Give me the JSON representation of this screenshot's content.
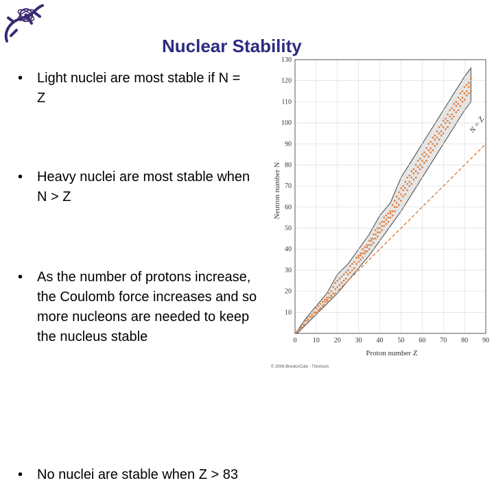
{
  "slide": {
    "title": "Nuclear Stability",
    "bullets": [
      "Light nuclei are most stable if N = Z",
      "Heavy nuclei are most stable when N > Z",
      "As the number of protons increase, the Coulomb force increases and so more nucleons are needed to keep the nucleus stable",
      "No nuclei are stable when Z > 83"
    ],
    "bullet_glyph": "•",
    "logo_icon": "lizard-atom-logo"
  },
  "chart_data": {
    "type": "scatter",
    "xlabel": "Proton number Z",
    "ylabel": "Neutron number N",
    "xlim": [
      0,
      90
    ],
    "ylim": [
      0,
      130
    ],
    "xticks": [
      0,
      10,
      20,
      30,
      40,
      50,
      60,
      70,
      80,
      90
    ],
    "yticks": [
      10,
      20,
      30,
      40,
      50,
      60,
      70,
      80,
      90,
      100,
      110,
      120,
      130
    ],
    "reference_line": {
      "label": "N = Z",
      "style": "dashed",
      "color": "#e07b39"
    },
    "band_color": "#e6e6e6",
    "point_color": "#e07b39",
    "credit": "© 2006 Brooks/Cole - Thomson",
    "stable_valley": [
      {
        "z": 1,
        "n_min": 0,
        "n_max": 1
      },
      {
        "z": 5,
        "n_min": 4,
        "n_max": 7
      },
      {
        "z": 10,
        "n_min": 9,
        "n_max": 13
      },
      {
        "z": 15,
        "n_min": 14,
        "n_max": 19
      },
      {
        "z": 20,
        "n_min": 19,
        "n_max": 28
      },
      {
        "z": 25,
        "n_min": 25,
        "n_max": 33
      },
      {
        "z": 30,
        "n_min": 31,
        "n_max": 40
      },
      {
        "z": 35,
        "n_min": 37,
        "n_max": 47
      },
      {
        "z": 40,
        "n_min": 44,
        "n_max": 56
      },
      {
        "z": 45,
        "n_min": 51,
        "n_max": 62
      },
      {
        "z": 50,
        "n_min": 58,
        "n_max": 74
      },
      {
        "z": 55,
        "n_min": 66,
        "n_max": 82
      },
      {
        "z": 60,
        "n_min": 74,
        "n_max": 90
      },
      {
        "z": 65,
        "n_min": 82,
        "n_max": 98
      },
      {
        "z": 70,
        "n_min": 90,
        "n_max": 106
      },
      {
        "z": 75,
        "n_min": 98,
        "n_max": 114
      },
      {
        "z": 80,
        "n_min": 106,
        "n_max": 122
      },
      {
        "z": 83,
        "n_min": 110,
        "n_max": 126
      }
    ]
  }
}
